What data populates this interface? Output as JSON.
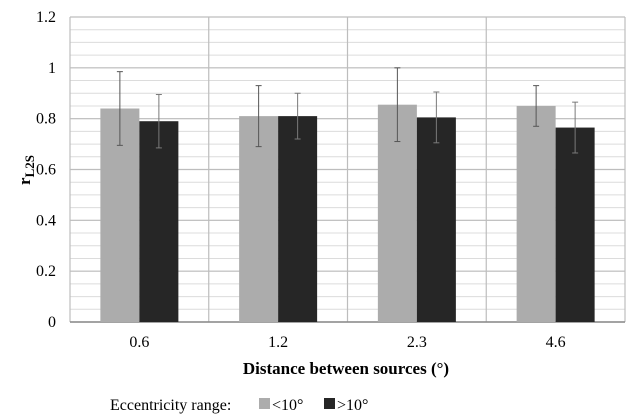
{
  "chart_data": {
    "type": "bar",
    "title": "",
    "xlabel": "Distance between sources (°)",
    "ylabel": {
      "main": "r",
      "sub": "L2S"
    },
    "categories": [
      "0.6",
      "1.2",
      "2.3",
      "4.6"
    ],
    "ylim": [
      0,
      1.2
    ],
    "yticks": [
      "0",
      "0.2",
      "0.4",
      "0.6",
      "0.8",
      "1",
      "1.2"
    ],
    "series": [
      {
        "name": "<10°",
        "color": "#acacac",
        "values": [
          0.84,
          0.81,
          0.855,
          0.85
        ],
        "err": [
          0.145,
          0.12,
          0.145,
          0.08
        ]
      },
      {
        "name": ">10°",
        "color": "#262626",
        "values": [
          0.79,
          0.81,
          0.805,
          0.765
        ],
        "err": [
          0.105,
          0.09,
          0.1,
          0.1
        ]
      }
    ],
    "grid": true,
    "legend": {
      "title": "Eccentricity range:",
      "position": "bottom"
    }
  }
}
